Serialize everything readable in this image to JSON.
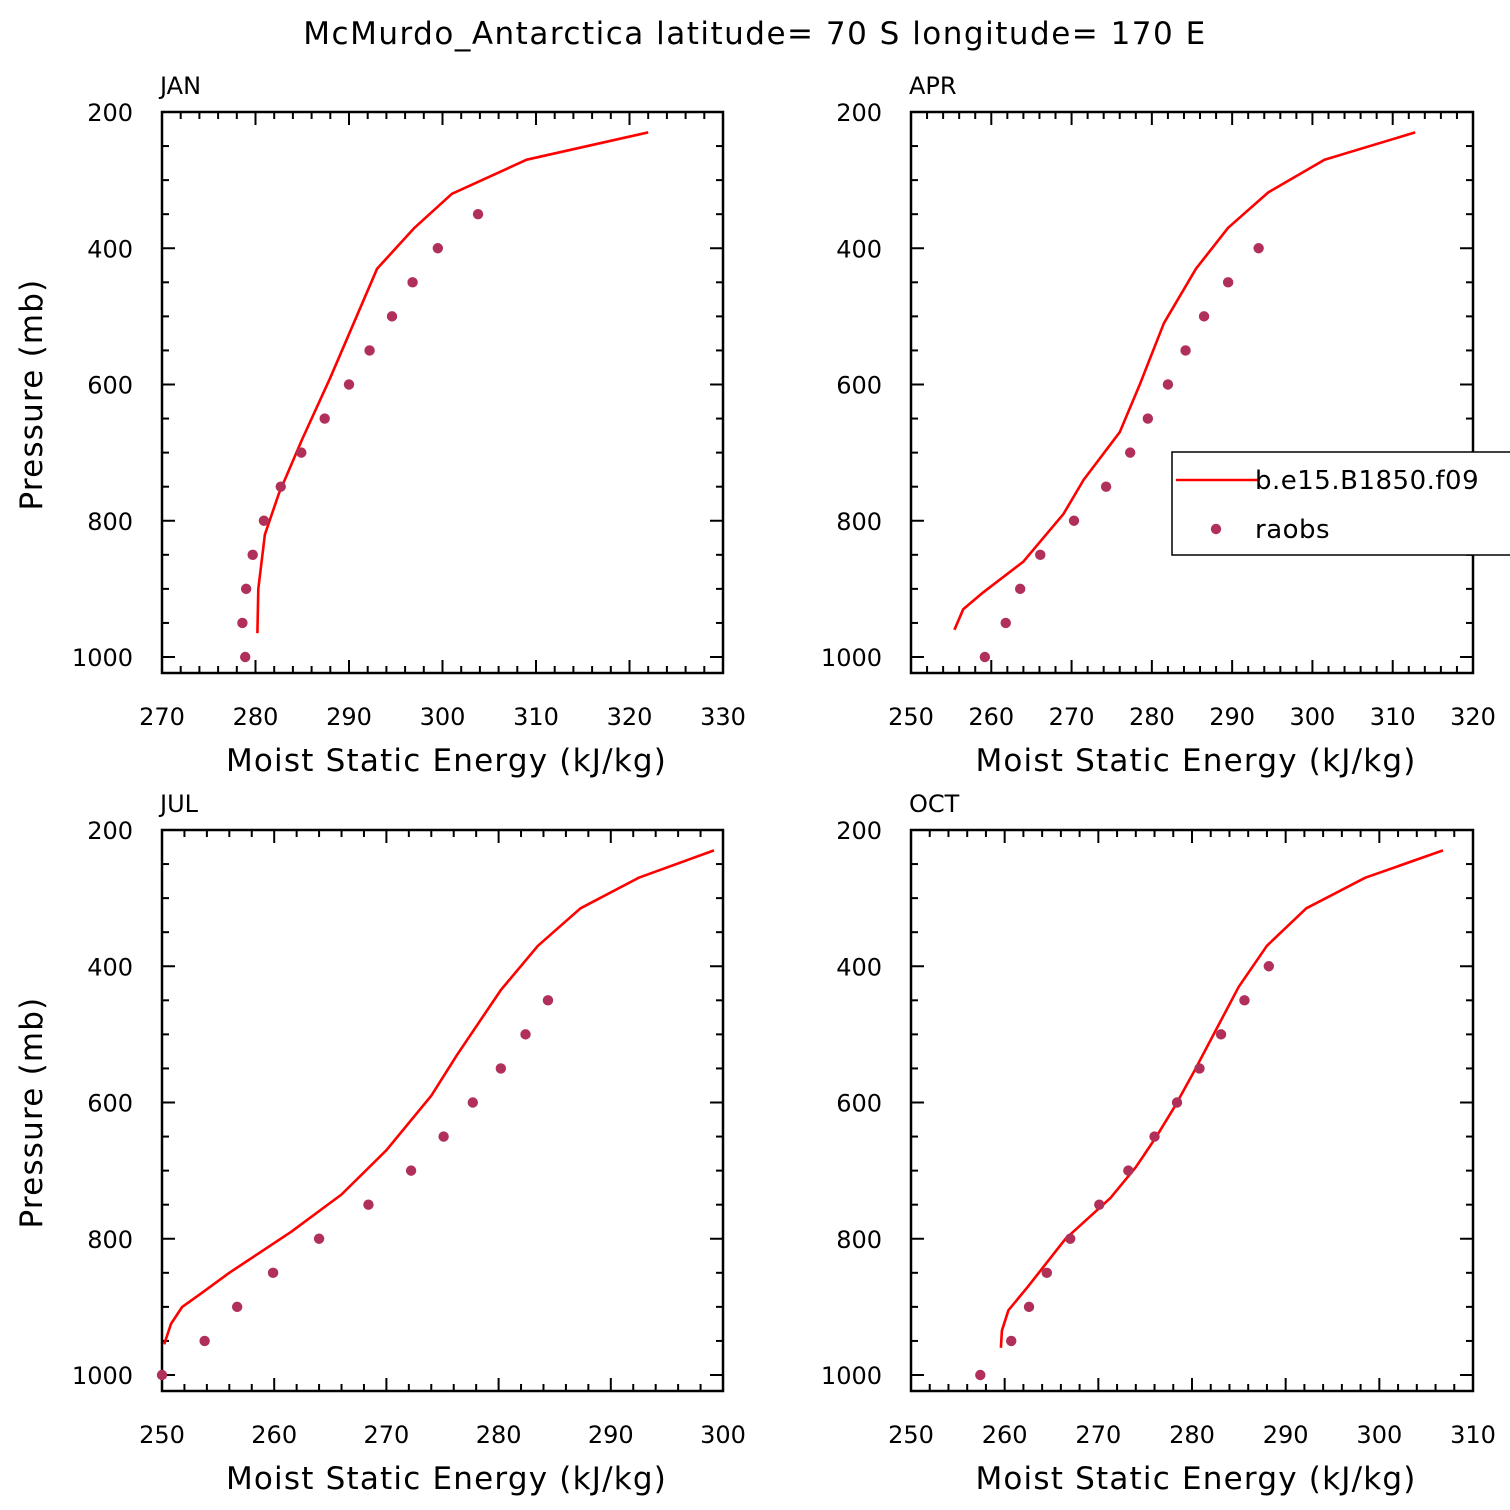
{
  "title": "McMurdo_Antarctica  latitude= 70 S longitude= 170 E",
  "colors": {
    "model_line": "#ff0000",
    "raobs_marker": "#b0305a",
    "axes": "#000000"
  },
  "legend": {
    "panel": 1,
    "entries": [
      {
        "label": "b.e15.B1850.f09",
        "kind": "line"
      },
      {
        "label": "raobs",
        "kind": "marker"
      }
    ]
  },
  "chart_data": [
    {
      "type": "scatter",
      "title": "JAN",
      "xlabel": "Moist Static Energy (kJ/kg)",
      "ylabel": "Pressure (mb)",
      "xlim": [
        270,
        330
      ],
      "ylim": [
        1000,
        200
      ],
      "xticks": [
        270,
        280,
        290,
        300,
        310,
        320,
        330
      ],
      "yticks": [
        200,
        400,
        600,
        800,
        1000
      ],
      "series": [
        {
          "name": "b.e15.B1850.f09",
          "kind": "line",
          "x": [
            322,
            309,
            301,
            297,
            293,
            288,
            285,
            282.5,
            281,
            280.3,
            280.2
          ],
          "y": [
            230,
            270,
            320,
            370,
            430,
            590,
            680,
            760,
            820,
            900,
            965
          ]
        },
        {
          "name": "raobs",
          "kind": "marker",
          "x": [
            303.8,
            299.5,
            296.8,
            294.6,
            292.2,
            290,
            287.4,
            284.9,
            282.7,
            280.9,
            279.7,
            279,
            278.6,
            278.9
          ],
          "y": [
            350,
            400,
            450,
            500,
            550,
            600,
            650,
            700,
            750,
            800,
            850,
            900,
            950,
            1000
          ]
        }
      ]
    },
    {
      "type": "scatter",
      "title": "APR",
      "xlabel": "Moist Static Energy (kJ/kg)",
      "ylabel": "",
      "xlim": [
        250,
        320
      ],
      "ylim": [
        1000,
        200
      ],
      "xticks": [
        250,
        260,
        270,
        280,
        290,
        300,
        310,
        320
      ],
      "yticks": [
        200,
        400,
        600,
        800,
        1000
      ],
      "series": [
        {
          "name": "b.e15.B1850.f09",
          "kind": "line",
          "x": [
            312.8,
            301.5,
            294.5,
            289.5,
            285.5,
            281.5,
            278.5,
            276,
            271.5,
            269,
            264,
            259,
            256.5,
            255.4
          ],
          "y": [
            230,
            270,
            318,
            370,
            430,
            510,
            600,
            670,
            740,
            790,
            860,
            905,
            930,
            960
          ]
        },
        {
          "name": "raobs",
          "kind": "marker",
          "x": [
            293.3,
            289.5,
            286.5,
            284.2,
            282,
            279.5,
            277.3,
            274.3,
            270.3,
            266.1,
            263.6,
            261.8,
            259.2
          ],
          "y": [
            400,
            450,
            500,
            550,
            600,
            650,
            700,
            750,
            800,
            850,
            900,
            950,
            1000
          ]
        }
      ]
    },
    {
      "type": "scatter",
      "title": "JUL",
      "xlabel": "Moist Static Energy (kJ/kg)",
      "ylabel": "Pressure (mb)",
      "xlim": [
        250,
        300
      ],
      "ylim": [
        1000,
        200
      ],
      "xticks": [
        250,
        260,
        270,
        280,
        290,
        300
      ],
      "yticks": [
        200,
        400,
        600,
        800,
        1000
      ],
      "series": [
        {
          "name": "b.e15.B1850.f09",
          "kind": "line",
          "x": [
            299.2,
            292.5,
            287.3,
            283.5,
            280.2,
            276.3,
            274,
            270,
            266,
            261.5,
            256,
            253.5,
            251.8,
            250.8,
            250.2
          ],
          "y": [
            230,
            270,
            315,
            370,
            435,
            530,
            590,
            670,
            735,
            790,
            850,
            880,
            900,
            925,
            955
          ]
        },
        {
          "name": "raobs",
          "kind": "marker",
          "x": [
            284.4,
            282.4,
            280.2,
            277.7,
            275.1,
            272.2,
            268.4,
            264,
            259.9,
            256.7,
            253.8,
            250
          ],
          "y": [
            450,
            500,
            550,
            600,
            650,
            700,
            750,
            800,
            850,
            900,
            950,
            1000
          ]
        }
      ]
    },
    {
      "type": "scatter",
      "title": "OCT",
      "xlabel": "Moist Static Energy (kJ/kg)",
      "ylabel": "",
      "xlim": [
        250,
        310
      ],
      "ylim": [
        1000,
        200
      ],
      "xticks": [
        250,
        260,
        270,
        280,
        290,
        300,
        310
      ],
      "yticks": [
        200,
        400,
        600,
        800,
        1000
      ],
      "series": [
        {
          "name": "b.e15.B1850.f09",
          "kind": "line",
          "x": [
            306.8,
            298.5,
            292.2,
            288,
            285,
            282.5,
            280.2,
            278.2,
            276.2,
            274,
            271.3,
            266.5,
            262.5,
            260.4,
            259.7,
            259.6
          ],
          "y": [
            230,
            270,
            315,
            370,
            430,
            495,
            555,
            605,
            650,
            695,
            740,
            800,
            870,
            905,
            935,
            960
          ]
        },
        {
          "name": "raobs",
          "kind": "marker",
          "x": [
            288.2,
            285.6,
            283.1,
            280.8,
            278.4,
            276,
            273.2,
            270.1,
            267,
            264.5,
            262.6,
            260.7,
            257.4
          ],
          "y": [
            400,
            450,
            500,
            550,
            600,
            650,
            700,
            750,
            800,
            850,
            900,
            950,
            1000
          ]
        }
      ]
    }
  ]
}
